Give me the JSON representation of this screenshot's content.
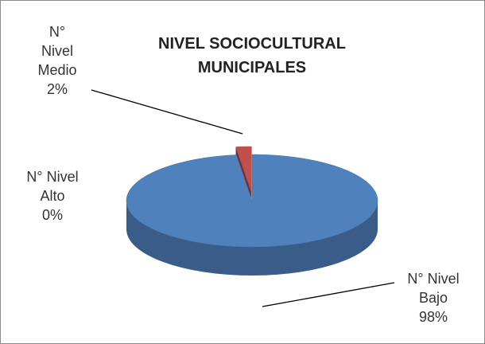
{
  "chart_data": {
    "type": "pie",
    "title": "NIVEL SOCIOCULTURAL MUNICIPALES",
    "categories": [
      "N° Nivel Bajo",
      "N° Nivel Medio",
      "N° Nivel Alto"
    ],
    "values": [
      98,
      2,
      0
    ],
    "value_labels": [
      "98%",
      "2%",
      "0%"
    ],
    "colors": [
      "#4f81bd",
      "#c0504d",
      "#9bbb59"
    ]
  }
}
